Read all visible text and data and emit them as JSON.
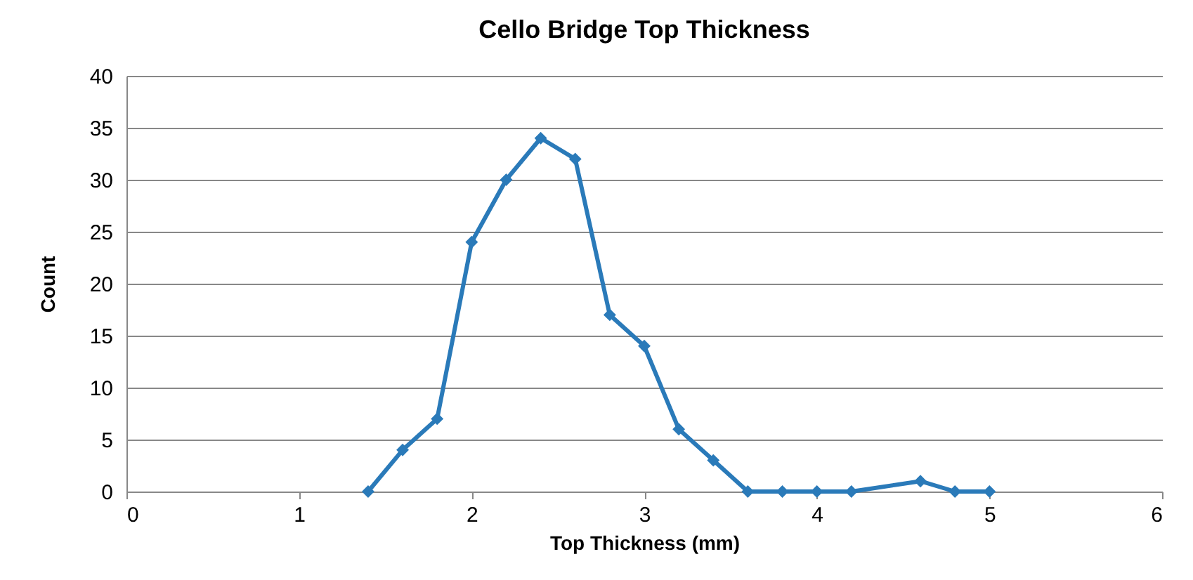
{
  "chart_data": {
    "type": "line",
    "title": "Cello Bridge Top Thickness",
    "xlabel": "Top Thickness (mm)",
    "ylabel": "Count",
    "x": [
      1.4,
      1.6,
      1.8,
      2.0,
      2.2,
      2.4,
      2.6,
      2.8,
      3.0,
      3.2,
      3.4,
      3.6,
      3.8,
      4.0,
      4.2,
      4.6,
      4.8,
      5.0
    ],
    "series": [
      {
        "color": "#2a7ab9",
        "values": [
          0,
          4,
          7,
          24,
          30,
          34,
          32,
          17,
          14,
          6,
          3,
          0,
          0,
          0,
          0,
          1,
          0,
          0
        ]
      }
    ],
    "xlim": [
      0,
      6
    ],
    "xticks": [
      0,
      1,
      2,
      3,
      4,
      5,
      6
    ],
    "ylim": [
      0,
      40
    ],
    "yticks": [
      0,
      5,
      10,
      15,
      20,
      25,
      30,
      35,
      40
    ],
    "grid": "y",
    "marker": "diamond",
    "line_style": "solid"
  }
}
